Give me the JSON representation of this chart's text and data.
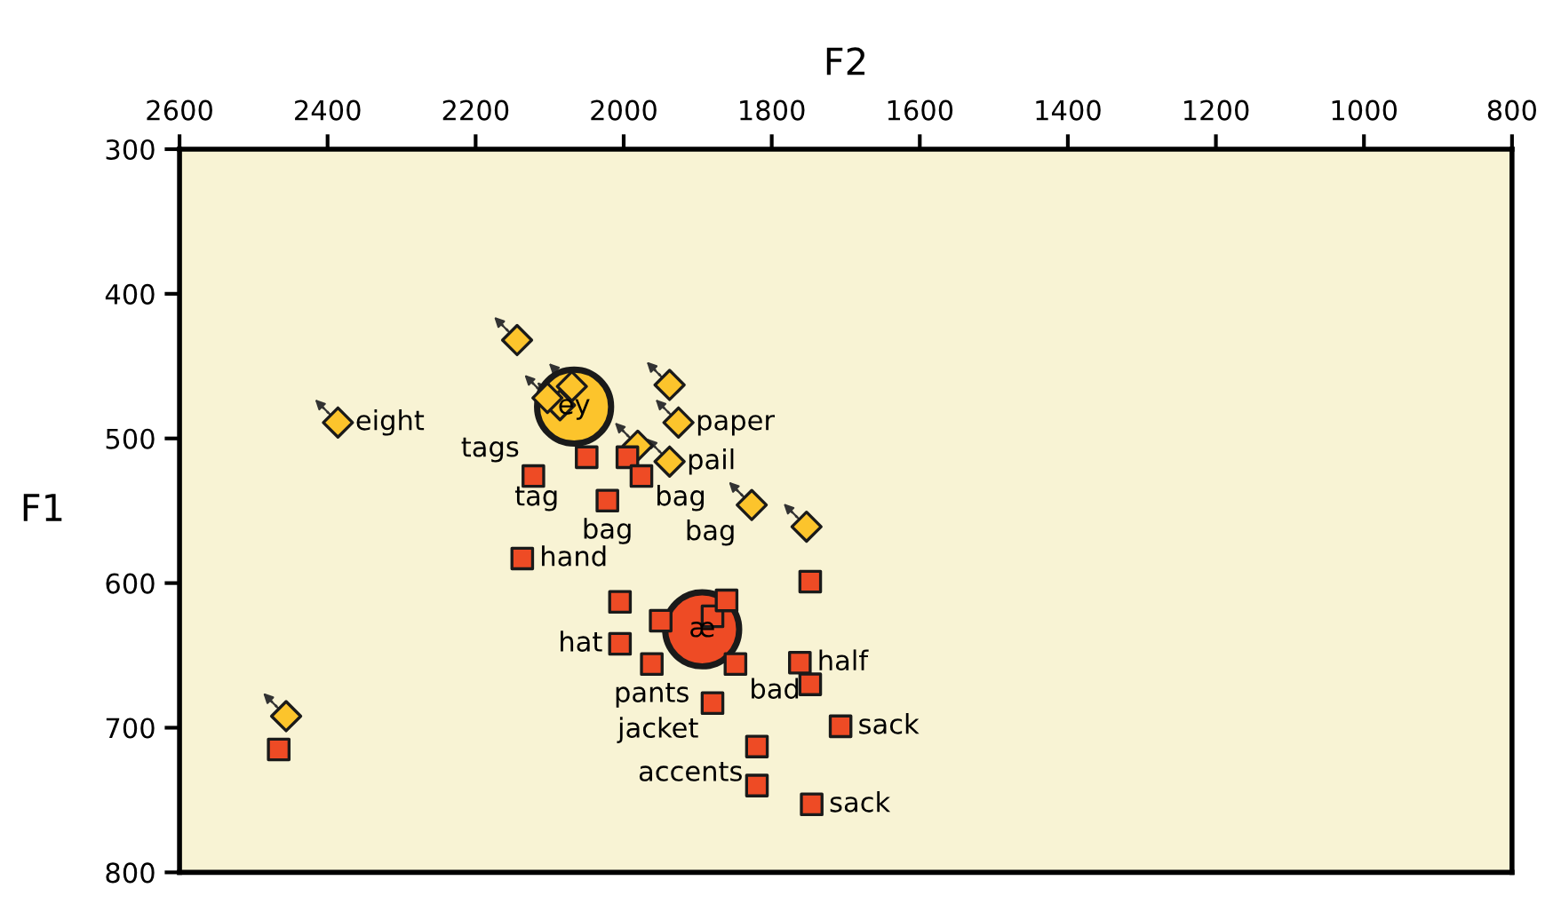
{
  "chart_data": {
    "type": "scatter",
    "xlabel": "F2",
    "ylabel": "F1",
    "xlim": [
      2600,
      800
    ],
    "xticks": [
      2600,
      2400,
      2200,
      2000,
      1800,
      1600,
      1400,
      1200,
      1000,
      800
    ],
    "ylim": [
      800,
      300
    ],
    "yticks": [
      300,
      400,
      500,
      600,
      700,
      800
    ],
    "grid": false,
    "legend": false,
    "series": [
      {
        "type": "line",
        "line_style": "dotted",
        "marker": "none",
        "color": "#333333",
        "x": [
          2144,
          2175,
          null,
          2386,
          2417,
          null,
          2070,
          2101,
          null,
          2086,
          2117,
          null,
          2103,
          2134,
          null,
          1938,
          1969,
          null,
          1926,
          1957,
          null,
          1981,
          2012,
          null,
          1938,
          1969,
          null,
          1827,
          1858,
          null,
          1753,
          1784,
          null,
          2456,
          2487
        ],
        "values": [
          432,
          416,
          null,
          489,
          473,
          null,
          464,
          448,
          null,
          477,
          461,
          null,
          472,
          456,
          null,
          463,
          447,
          null,
          489,
          473,
          null,
          505,
          489,
          null,
          516,
          500,
          null,
          546,
          530,
          null,
          561,
          545,
          null,
          692,
          676
        ]
      },
      {
        "type": "scatter",
        "marker": "diamond",
        "color": "#fcc42c",
        "x": [
          2144,
          2386,
          2070,
          2086,
          2103,
          1938,
          1926,
          1981,
          1938,
          1827,
          1753,
          2456
        ],
        "values": [
          432,
          489,
          464,
          477,
          472,
          463,
          489,
          505,
          516,
          546,
          561,
          692
        ]
      },
      {
        "type": "scatter",
        "marker": "square",
        "color": "#ee4b25",
        "x": [
          2050,
          1995,
          2122,
          1976,
          2022,
          2137,
          2005,
          1950,
          1880,
          1861,
          2005,
          1962,
          1849,
          1762,
          1748,
          1748,
          1880,
          1707,
          1820,
          1820,
          1746,
          2466
        ],
        "values": [
          513,
          513,
          526,
          526,
          543,
          583,
          613,
          626,
          623,
          612,
          642,
          656,
          656,
          655,
          670,
          599,
          683,
          699,
          713,
          740,
          753,
          715
        ]
      },
      {
        "type": "scatter",
        "marker": "circle",
        "colors": [
          "#fcc42c",
          "#ee4b25"
        ],
        "x": [
          2067,
          1894
        ],
        "values": [
          478,
          632
        ]
      }
    ],
    "annotations": [
      {
        "text": "ey",
        "x": 2067,
        "y": 478
      },
      {
        "text": "æ",
        "x": 1894,
        "y": 632
      },
      {
        "text": "eight",
        "x": 2386,
        "y": 489
      },
      {
        "text": "paper",
        "x": 1926,
        "y": 489
      },
      {
        "text": "pail",
        "x": 1938,
        "y": 516
      },
      {
        "text": "tag",
        "x": 2050,
        "y": 513
      },
      {
        "text": "tags",
        "x": 2122,
        "y": 526
      },
      {
        "text": "bag",
        "x": 1995,
        "y": 513
      },
      {
        "text": "bag",
        "x": 2022,
        "y": 543
      },
      {
        "text": "bag",
        "x": 1976,
        "y": 526
      },
      {
        "text": "hand",
        "x": 2137,
        "y": 583
      },
      {
        "text": "hat",
        "x": 2005,
        "y": 642
      },
      {
        "text": "pants",
        "x": 1962,
        "y": 656
      },
      {
        "text": "jacket",
        "x": 1880,
        "y": 683
      },
      {
        "text": "bad",
        "x": 1849,
        "y": 656
      },
      {
        "text": "half",
        "x": 1762,
        "y": 655
      },
      {
        "text": "sack",
        "x": 1707,
        "y": 699
      },
      {
        "text": "accents",
        "x": 1820,
        "y": 713
      },
      {
        "text": "sack",
        "x": 1746,
        "y": 753
      }
    ]
  }
}
